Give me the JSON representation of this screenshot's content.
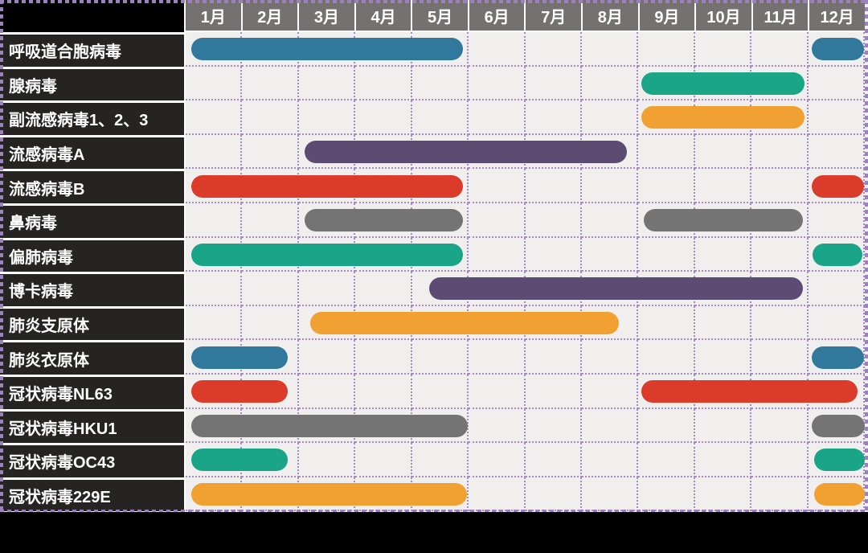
{
  "frame_color": "#9B82BE",
  "grid": {
    "header_bg": "#767171",
    "header_text_color": "#FFFFFF",
    "label_bg": "#262323",
    "label_text_color": "#FFFFFF",
    "corner_bg": "#000000",
    "plot_bg": "#F0EFED",
    "gridline_color": "#A58BC2",
    "separator_color": "#FFFFFF"
  },
  "chart_data": {
    "type": "gantt",
    "title": "",
    "x_axis": "months",
    "months": [
      "1月",
      "2月",
      "3月",
      "4月",
      "5月",
      "6月",
      "7月",
      "8月",
      "9月",
      "10月",
      "11月",
      "12月"
    ],
    "month_scale_note": "bar start/end are in month units, 1 = start of January, 13 = end of December",
    "rows": [
      {
        "label": "呼吸道合胞病毒",
        "color": "#31799C",
        "bars": [
          {
            "start": 1.1,
            "end": 5.9
          },
          {
            "start": 12.06,
            "end": 12.99
          }
        ]
      },
      {
        "label": "腺病毒",
        "color": "#1AA488",
        "bars": [
          {
            "start": 9.05,
            "end": 11.93
          }
        ]
      },
      {
        "label": "副流感病毒1、2、3",
        "color": "#F0A132",
        "bars": [
          {
            "start": 9.05,
            "end": 11.93
          }
        ]
      },
      {
        "label": "流感病毒A",
        "color": "#5C4B73",
        "bars": [
          {
            "start": 3.1,
            "end": 8.8
          }
        ]
      },
      {
        "label": "流感病毒B",
        "color": "#DB3B2B",
        "bars": [
          {
            "start": 1.1,
            "end": 5.9
          },
          {
            "start": 12.06,
            "end": 12.99
          }
        ]
      },
      {
        "label": "鼻病毒",
        "color": "#747474",
        "bars": [
          {
            "start": 3.1,
            "end": 5.9
          },
          {
            "start": 9.1,
            "end": 11.9
          }
        ]
      },
      {
        "label": "偏肺病毒",
        "color": "#1AA488",
        "bars": [
          {
            "start": 1.1,
            "end": 5.9
          },
          {
            "start": 12.08,
            "end": 12.96
          }
        ]
      },
      {
        "label": "博卡病毒",
        "color": "#5C4B73",
        "bars": [
          {
            "start": 5.3,
            "end": 11.9
          }
        ]
      },
      {
        "label": "肺炎支原体",
        "color": "#F0A132",
        "bars": [
          {
            "start": 3.2,
            "end": 8.65
          }
        ]
      },
      {
        "label": "肺炎衣原体",
        "color": "#31799C",
        "bars": [
          {
            "start": 1.1,
            "end": 2.8
          },
          {
            "start": 12.06,
            "end": 12.99
          }
        ]
      },
      {
        "label": "冠状病毒NL63",
        "color": "#DB3B2B",
        "bars": [
          {
            "start": 1.1,
            "end": 2.8
          },
          {
            "start": 9.05,
            "end": 12.87
          }
        ]
      },
      {
        "label": "冠状病毒HKU1",
        "color": "#747474",
        "bars": [
          {
            "start": 1.1,
            "end": 5.98
          },
          {
            "start": 12.06,
            "end": 13
          }
        ]
      },
      {
        "label": "冠状病毒OC43",
        "color": "#1AA488",
        "bars": [
          {
            "start": 1.1,
            "end": 2.8
          },
          {
            "start": 12.1,
            "end": 13
          }
        ]
      },
      {
        "label": "冠状病毒229E",
        "color": "#F0A132",
        "bars": [
          {
            "start": 1.1,
            "end": 5.97
          },
          {
            "start": 12.1,
            "end": 13
          }
        ]
      }
    ]
  }
}
